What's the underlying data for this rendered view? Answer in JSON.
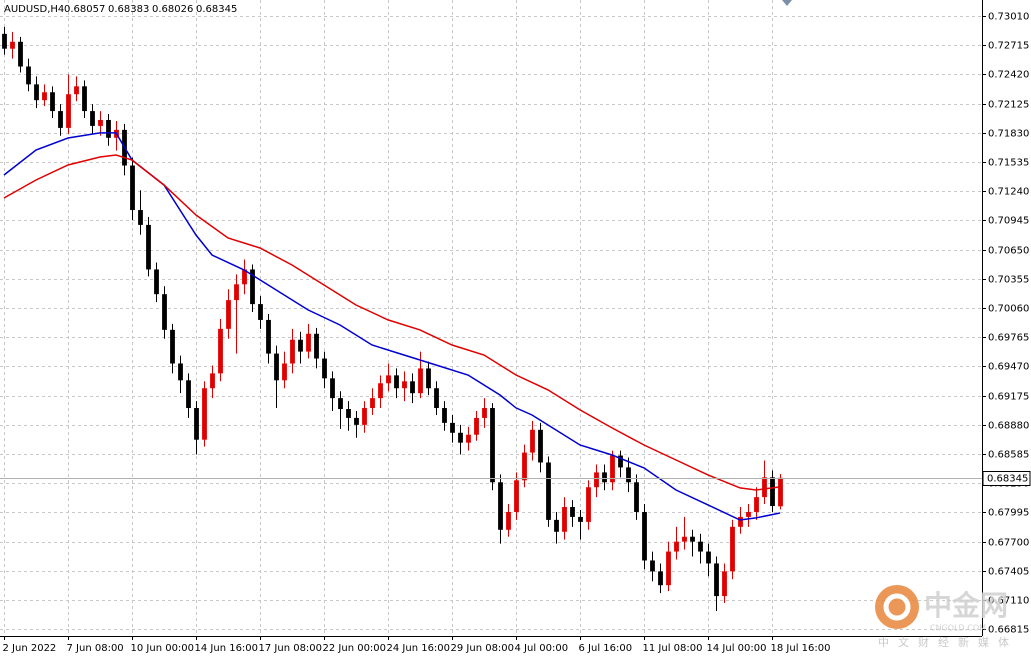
{
  "chart_data": {
    "type": "candlestick",
    "title": "AUDUSD,H4",
    "up_color": "#e00000",
    "down_color": "#000000",
    "grid": true,
    "xlim": [
      -0.5,
      122.25
    ],
    "ylim": [
      0.66747,
      0.73172
    ],
    "yticks": [
      {
        "value": 0.7301,
        "label": "0.73010"
      },
      0.72715,
      {
        "value": 0.7242,
        "label": "0.72420"
      },
      0.72125,
      {
        "value": 0.7183,
        "label": "0.71830"
      },
      0.71535,
      {
        "value": 0.7124,
        "label": "0.71240"
      },
      0.70945,
      {
        "value": 0.7065,
        "label": "0.70650"
      },
      0.70355,
      {
        "value": 0.7006,
        "label": "0.70060"
      },
      0.69765,
      {
        "value": 0.6947,
        "label": "0.69470"
      },
      0.69175,
      {
        "value": 0.6888,
        "label": "0.68880"
      },
      0.68585,
      {
        "value": 0.6829,
        "label": "0.68290"
      },
      0.67995,
      {
        "value": 0.677,
        "label": "0.67700"
      },
      0.67405,
      {
        "value": 0.6711,
        "label": "0.67110"
      },
      0.66815
    ],
    "xticks": [
      {
        "value": 0,
        "label": "2 Jun 2022"
      },
      {
        "value": 8,
        "label": "7 Jun 08:00"
      },
      {
        "value": 16,
        "label": "10 Jun 00:00"
      },
      {
        "value": 24,
        "label": "14 Jun 16:00"
      },
      {
        "value": 32,
        "label": "17 Jun 08:00"
      },
      {
        "value": 40,
        "label": "22 Jun 00:00"
      },
      {
        "value": 48,
        "label": "24 Jun 16:00"
      },
      {
        "value": 56,
        "label": "29 Jun 08:00"
      },
      {
        "value": 64,
        "label": "4 Jul 00:00"
      },
      {
        "value": 72,
        "label": "6 Jul 16:00"
      },
      {
        "value": 80,
        "label": "11 Jul 08:00"
      },
      {
        "value": 88,
        "label": "14 Jul 00:00"
      },
      {
        "value": 96,
        "label": "18 Jul 16:00"
      }
    ],
    "ohlc": [
      [
        0.7283,
        0.729,
        0.7262,
        0.7268
      ],
      [
        0.7268,
        0.7285,
        0.7258,
        0.7275
      ],
      [
        0.7275,
        0.728,
        0.7244,
        0.725
      ],
      [
        0.725,
        0.7258,
        0.7225,
        0.7232
      ],
      [
        0.7232,
        0.724,
        0.7208,
        0.7216
      ],
      [
        0.7216,
        0.7232,
        0.721,
        0.7224
      ],
      [
        0.7224,
        0.723,
        0.7198,
        0.7205
      ],
      [
        0.7205,
        0.7212,
        0.718,
        0.7188
      ],
      [
        0.7188,
        0.7242,
        0.7182,
        0.7222
      ],
      [
        0.7222,
        0.724,
        0.7215,
        0.723
      ],
      [
        0.723,
        0.7236,
        0.7198,
        0.7205
      ],
      [
        0.7205,
        0.7212,
        0.7182,
        0.719
      ],
      [
        0.719,
        0.7205,
        0.718,
        0.7196
      ],
      [
        0.7196,
        0.7202,
        0.717,
        0.7178
      ],
      [
        0.7178,
        0.7195,
        0.7165,
        0.7186
      ],
      [
        0.7186,
        0.7192,
        0.714,
        0.715
      ],
      [
        0.715,
        0.7158,
        0.7095,
        0.7105
      ],
      [
        0.7105,
        0.7125,
        0.708,
        0.709
      ],
      [
        0.709,
        0.7098,
        0.7038,
        0.7045
      ],
      [
        0.7045,
        0.7052,
        0.7012,
        0.702
      ],
      [
        0.702,
        0.7028,
        0.6975,
        0.6984
      ],
      [
        0.6984,
        0.699,
        0.694,
        0.695
      ],
      [
        0.695,
        0.6958,
        0.692,
        0.6933
      ],
      [
        0.6933,
        0.694,
        0.6895,
        0.6905
      ],
      [
        0.6905,
        0.6912,
        0.6858,
        0.6873
      ],
      [
        0.6873,
        0.6932,
        0.6866,
        0.6925
      ],
      [
        0.6925,
        0.6948,
        0.6915,
        0.694
      ],
      [
        0.694,
        0.6995,
        0.6932,
        0.6985
      ],
      [
        0.6985,
        0.7025,
        0.6975,
        0.7014
      ],
      [
        0.7014,
        0.704,
        0.696,
        0.703
      ],
      [
        0.703,
        0.7055,
        0.702,
        0.7045
      ],
      [
        0.7045,
        0.705,
        0.7002,
        0.701
      ],
      [
        0.701,
        0.7018,
        0.6985,
        0.6994
      ],
      [
        0.6994,
        0.7,
        0.695,
        0.696
      ],
      [
        0.696,
        0.6968,
        0.6905,
        0.6933
      ],
      [
        0.6933,
        0.6962,
        0.6925,
        0.695
      ],
      [
        0.695,
        0.6985,
        0.694,
        0.6974
      ],
      [
        0.6974,
        0.6982,
        0.695,
        0.6962
      ],
      [
        0.6962,
        0.699,
        0.6955,
        0.698
      ],
      [
        0.698,
        0.6986,
        0.6945,
        0.6955
      ],
      [
        0.6955,
        0.6962,
        0.6925,
        0.6935
      ],
      [
        0.6935,
        0.6942,
        0.6902,
        0.6915
      ],
      [
        0.6915,
        0.6922,
        0.6884,
        0.6904
      ],
      [
        0.6904,
        0.6912,
        0.6882,
        0.6895
      ],
      [
        0.6895,
        0.6902,
        0.6875,
        0.6888
      ],
      [
        0.6888,
        0.6912,
        0.688,
        0.6905
      ],
      [
        0.6905,
        0.6925,
        0.6898,
        0.6915
      ],
      [
        0.6915,
        0.6938,
        0.6905,
        0.693
      ],
      [
        0.693,
        0.695,
        0.6922,
        0.6938
      ],
      [
        0.6938,
        0.6945,
        0.6915,
        0.6925
      ],
      [
        0.6925,
        0.6942,
        0.6912,
        0.6932
      ],
      [
        0.6932,
        0.694,
        0.691,
        0.692
      ],
      [
        0.692,
        0.6962,
        0.6915,
        0.6945
      ],
      [
        0.6945,
        0.6952,
        0.6918,
        0.6925
      ],
      [
        0.6925,
        0.6932,
        0.6898,
        0.6905
      ],
      [
        0.6905,
        0.6912,
        0.6882,
        0.689
      ],
      [
        0.689,
        0.6898,
        0.687,
        0.688
      ],
      [
        0.688,
        0.6888,
        0.6858,
        0.687
      ],
      [
        0.687,
        0.6886,
        0.6862,
        0.6878
      ],
      [
        0.6878,
        0.6902,
        0.6872,
        0.6895
      ],
      [
        0.6895,
        0.6915,
        0.6885,
        0.6905
      ],
      [
        0.6905,
        0.691,
        0.6822,
        0.683
      ],
      [
        0.683,
        0.6838,
        0.6768,
        0.6782
      ],
      [
        0.6782,
        0.6808,
        0.6775,
        0.68
      ],
      [
        0.68,
        0.684,
        0.6792,
        0.6832
      ],
      [
        0.6832,
        0.6868,
        0.6825,
        0.686
      ],
      [
        0.686,
        0.6892,
        0.6852,
        0.6883
      ],
      [
        0.6883,
        0.689,
        0.684,
        0.685
      ],
      [
        0.685,
        0.6856,
        0.6785,
        0.6792
      ],
      [
        0.6792,
        0.68,
        0.6768,
        0.678
      ],
      [
        0.678,
        0.6815,
        0.6772,
        0.6805
      ],
      [
        0.6805,
        0.6812,
        0.6785,
        0.6795
      ],
      [
        0.6795,
        0.6802,
        0.6772,
        0.679
      ],
      [
        0.679,
        0.6832,
        0.6782,
        0.6825
      ],
      [
        0.6825,
        0.6848,
        0.6815,
        0.684
      ],
      [
        0.684,
        0.6848,
        0.6822,
        0.683
      ],
      [
        0.683,
        0.6862,
        0.6822,
        0.6857
      ],
      [
        0.6857,
        0.6862,
        0.6835,
        0.6845
      ],
      [
        0.6845,
        0.6855,
        0.682,
        0.683
      ],
      [
        0.683,
        0.6838,
        0.6792,
        0.68
      ],
      [
        0.68,
        0.6808,
        0.6742,
        0.6751
      ],
      [
        0.6751,
        0.676,
        0.673,
        0.674
      ],
      [
        0.674,
        0.6748,
        0.6718,
        0.6726
      ],
      [
        0.6726,
        0.677,
        0.672,
        0.676
      ],
      [
        0.676,
        0.6785,
        0.6752,
        0.677
      ],
      [
        0.677,
        0.6795,
        0.6762,
        0.6775
      ],
      [
        0.6775,
        0.6782,
        0.6755,
        0.677
      ],
      [
        0.677,
        0.6778,
        0.6748,
        0.676
      ],
      [
        0.676,
        0.6768,
        0.6735,
        0.6748
      ],
      [
        0.6748,
        0.6755,
        0.67,
        0.6715
      ],
      [
        0.6715,
        0.6748,
        0.6708,
        0.674
      ],
      [
        0.674,
        0.6792,
        0.6732,
        0.6785
      ],
      [
        0.6785,
        0.6805,
        0.6778,
        0.6795
      ],
      [
        0.6795,
        0.6808,
        0.6785,
        0.68
      ],
      [
        0.68,
        0.6825,
        0.6792,
        0.6815
      ],
      [
        0.6815,
        0.6852,
        0.6808,
        0.6835
      ],
      [
        0.6835,
        0.6842,
        0.68,
        0.6806
      ],
      [
        0.68057,
        0.68383,
        0.68026,
        0.68345
      ]
    ],
    "series": [
      {
        "color": "#0000d0",
        "x": [
          0,
          4,
          8,
          12,
          14,
          16,
          20,
          24,
          26,
          30,
          34,
          38,
          42,
          46,
          50,
          54,
          58,
          62,
          64,
          66,
          68,
          72,
          76,
          80,
          84,
          88,
          92,
          94,
          97
        ],
        "values": [
          0.71404,
          0.71657,
          0.71778,
          0.71829,
          0.71829,
          0.71556,
          0.71303,
          0.70798,
          0.70596,
          0.70445,
          0.70243,
          0.70041,
          0.69889,
          0.69687,
          0.69586,
          0.69485,
          0.69384,
          0.69182,
          0.69051,
          0.6898,
          0.68879,
          0.68677,
          0.68576,
          0.68445,
          0.68222,
          0.68071,
          0.67919,
          0.6794,
          0.6799
        ]
      },
      {
        "color": "#e00000",
        "x": [
          0,
          4,
          8,
          12,
          14,
          16,
          20,
          24,
          28,
          32,
          36,
          40,
          44,
          48,
          52,
          56,
          60,
          64,
          68,
          72,
          76,
          80,
          84,
          88,
          92,
          94,
          97
        ],
        "values": [
          0.71172,
          0.71354,
          0.71505,
          0.71586,
          0.71606,
          0.71556,
          0.71303,
          0.71,
          0.70768,
          0.70667,
          0.70495,
          0.70293,
          0.70091,
          0.6994,
          0.69839,
          0.69687,
          0.69586,
          0.69384,
          0.69233,
          0.69031,
          0.68849,
          0.68677,
          0.68525,
          0.68374,
          0.68243,
          0.68222,
          0.68253
        ]
      }
    ]
  },
  "watermark": {
    "brand": "中金网",
    "site": "CNGOLD.COM",
    "slogan": "中文财经新媒体"
  }
}
